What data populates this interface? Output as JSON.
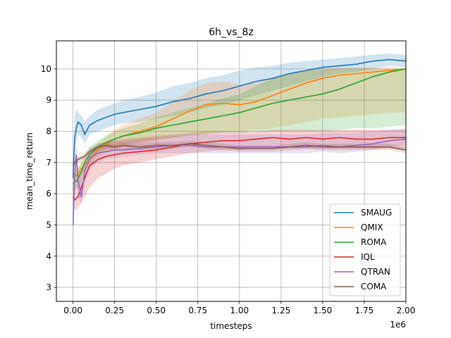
{
  "chart_data": {
    "type": "line",
    "title": "6h_vs_8z",
    "xlabel": "timesteps",
    "ylabel": "mean_time_return",
    "x_offset_label": "1e6",
    "xlim": [
      -0.1,
      2.0
    ],
    "ylim": [
      2.55,
      10.9
    ],
    "grid": true,
    "legend": "lower-right",
    "x_ticks": [
      0.0,
      0.25,
      0.5,
      0.75,
      1.0,
      1.25,
      1.5,
      1.75,
      2.0
    ],
    "x_tick_labels": [
      "0.00",
      "0.25",
      "0.50",
      "0.75",
      "1.00",
      "1.25",
      "1.50",
      "1.75",
      "2.00"
    ],
    "y_ticks": [
      3,
      4,
      5,
      6,
      7,
      8,
      9,
      10
    ],
    "y_tick_labels": [
      "3",
      "4",
      "5",
      "6",
      "7",
      "8",
      "9",
      "10"
    ],
    "x": [
      0.0,
      0.01,
      0.02,
      0.03,
      0.05,
      0.07,
      0.1,
      0.15,
      0.2,
      0.25,
      0.3,
      0.4,
      0.5,
      0.6,
      0.7,
      0.8,
      0.9,
      1.0,
      1.1,
      1.2,
      1.3,
      1.4,
      1.5,
      1.6,
      1.7,
      1.8,
      1.9,
      2.0
    ],
    "series": [
      {
        "name": "SMAUG",
        "color": "#1f77b4",
        "values": [
          6.5,
          7.8,
          8.1,
          8.3,
          8.2,
          7.9,
          8.2,
          8.35,
          8.45,
          8.55,
          8.6,
          8.7,
          8.8,
          8.95,
          9.05,
          9.2,
          9.3,
          9.45,
          9.6,
          9.7,
          9.85,
          9.95,
          10.05,
          10.1,
          10.15,
          10.25,
          10.3,
          10.25
        ],
        "band_low": [
          3.0,
          7.0,
          7.7,
          7.9,
          7.8,
          7.6,
          7.9,
          8.0,
          8.1,
          8.2,
          8.25,
          8.3,
          8.4,
          8.5,
          8.6,
          8.75,
          8.85,
          9.0,
          9.15,
          9.3,
          9.45,
          9.6,
          9.75,
          9.85,
          9.9,
          10.0,
          10.1,
          10.05
        ],
        "band_high": [
          6.8,
          8.5,
          8.7,
          8.6,
          8.5,
          8.3,
          8.5,
          8.7,
          8.8,
          8.9,
          9.0,
          9.1,
          9.25,
          9.45,
          9.55,
          9.7,
          9.8,
          9.95,
          10.05,
          10.1,
          10.2,
          10.25,
          10.3,
          10.35,
          10.4,
          10.45,
          10.5,
          10.45
        ]
      },
      {
        "name": "QMIX",
        "color": "#ff7f0e",
        "values": [
          6.5,
          6.55,
          6.6,
          6.65,
          6.8,
          6.95,
          7.1,
          7.4,
          7.6,
          7.75,
          7.85,
          8.0,
          8.15,
          8.4,
          8.65,
          8.85,
          8.9,
          8.85,
          8.95,
          9.15,
          9.35,
          9.55,
          9.7,
          9.8,
          9.85,
          9.9,
          9.95,
          10.0
        ],
        "band_low": [
          6.3,
          6.35,
          6.4,
          6.45,
          6.6,
          6.75,
          6.9,
          7.2,
          7.35,
          7.45,
          7.5,
          7.6,
          7.7,
          7.8,
          7.9,
          7.95,
          8.0,
          8.0,
          8.05,
          8.1,
          8.2,
          8.3,
          8.4,
          8.45,
          8.5,
          8.55,
          8.6,
          8.6
        ],
        "band_high": [
          6.7,
          6.75,
          6.8,
          6.85,
          7.0,
          7.15,
          7.3,
          7.6,
          7.85,
          8.05,
          8.2,
          8.4,
          8.6,
          8.95,
          9.3,
          9.55,
          9.6,
          9.5,
          9.55,
          9.7,
          9.85,
          9.95,
          10.0,
          10.05,
          10.05,
          10.05,
          10.05,
          10.05
        ]
      },
      {
        "name": "ROMA",
        "color": "#2ca02c",
        "values": [
          6.3,
          6.4,
          6.4,
          6.5,
          6.7,
          7.0,
          7.25,
          7.5,
          7.65,
          7.75,
          7.85,
          7.95,
          8.1,
          8.2,
          8.3,
          8.4,
          8.5,
          8.6,
          8.75,
          8.9,
          9.0,
          9.1,
          9.2,
          9.35,
          9.55,
          9.75,
          9.9,
          10.0
        ],
        "band_low": [
          6.0,
          6.1,
          6.15,
          6.2,
          6.4,
          6.75,
          7.0,
          7.3,
          7.45,
          7.5,
          7.6,
          7.65,
          7.75,
          7.8,
          7.85,
          7.9,
          7.95,
          7.95,
          8.0,
          8.0,
          8.0,
          8.0,
          8.0,
          8.05,
          8.1,
          8.1,
          8.15,
          8.2
        ],
        "band_high": [
          6.6,
          6.7,
          6.7,
          6.8,
          7.0,
          7.25,
          7.5,
          7.7,
          7.85,
          8.0,
          8.1,
          8.25,
          8.45,
          8.6,
          8.75,
          8.9,
          9.05,
          9.2,
          9.45,
          9.7,
          9.85,
          9.95,
          10.0,
          10.0,
          10.0,
          10.0,
          10.0,
          10.0
        ]
      },
      {
        "name": "IQL",
        "color": "#d62728",
        "values": [
          5.9,
          5.8,
          5.85,
          5.9,
          6.2,
          6.5,
          6.9,
          7.1,
          7.2,
          7.25,
          7.3,
          7.35,
          7.4,
          7.5,
          7.6,
          7.65,
          7.7,
          7.7,
          7.75,
          7.8,
          7.75,
          7.8,
          7.75,
          7.8,
          7.75,
          7.75,
          7.8,
          7.8
        ],
        "band_low": [
          5.6,
          5.5,
          5.5,
          5.55,
          5.7,
          5.9,
          6.2,
          6.5,
          6.65,
          6.8,
          6.9,
          7.0,
          7.1,
          7.2,
          7.3,
          7.35,
          7.4,
          7.4,
          7.45,
          7.45,
          7.45,
          7.45,
          7.45,
          7.45,
          7.45,
          7.45,
          7.45,
          7.45
        ],
        "band_high": [
          6.2,
          6.3,
          6.4,
          6.5,
          6.7,
          6.9,
          7.2,
          7.5,
          7.6,
          7.7,
          7.75,
          7.8,
          7.85,
          7.9,
          7.95,
          8.0,
          8.0,
          8.0,
          8.0,
          8.05,
          8.05,
          8.05,
          8.05,
          8.05,
          8.05,
          8.05,
          8.05,
          8.05
        ]
      },
      {
        "name": "QTRAN",
        "color": "#9467bd",
        "values": [
          5.0,
          6.6,
          7.25,
          6.4,
          5.9,
          6.7,
          7.15,
          7.3,
          7.35,
          7.4,
          7.4,
          7.45,
          7.5,
          7.55,
          7.55,
          7.5,
          7.5,
          7.5,
          7.5,
          7.5,
          7.5,
          7.5,
          7.55,
          7.5,
          7.55,
          7.6,
          7.7,
          7.75
        ],
        "band_low": [
          4.8,
          6.0,
          6.7,
          5.9,
          5.7,
          6.3,
          6.8,
          7.0,
          7.1,
          7.15,
          7.2,
          7.25,
          7.3,
          7.3,
          7.3,
          7.3,
          7.3,
          7.3,
          7.3,
          7.3,
          7.3,
          7.3,
          7.35,
          7.3,
          7.35,
          7.4,
          7.5,
          7.55
        ],
        "band_high": [
          5.3,
          7.1,
          7.6,
          6.9,
          6.4,
          7.0,
          7.45,
          7.6,
          7.65,
          7.7,
          7.7,
          7.75,
          7.8,
          7.85,
          7.9,
          7.9,
          7.9,
          7.9,
          7.9,
          7.9,
          7.9,
          7.9,
          7.95,
          7.95,
          7.95,
          8.0,
          8.05,
          8.1
        ]
      },
      {
        "name": "COMA",
        "color": "#8c564b",
        "values": [
          6.9,
          7.0,
          7.05,
          7.1,
          7.15,
          7.2,
          7.35,
          7.5,
          7.55,
          7.5,
          7.55,
          7.5,
          7.55,
          7.55,
          7.6,
          7.55,
          7.5,
          7.45,
          7.45,
          7.45,
          7.5,
          7.55,
          7.5,
          7.5,
          7.5,
          7.5,
          7.5,
          7.4
        ],
        "band_low": [
          6.8,
          6.9,
          6.95,
          7.0,
          7.05,
          7.1,
          7.25,
          7.4,
          7.45,
          7.4,
          7.45,
          7.4,
          7.45,
          7.45,
          7.5,
          7.45,
          7.4,
          7.35,
          7.35,
          7.35,
          7.4,
          7.45,
          7.4,
          7.4,
          7.4,
          7.4,
          7.4,
          7.3
        ],
        "band_high": [
          7.0,
          7.1,
          7.15,
          7.2,
          7.25,
          7.3,
          7.45,
          7.6,
          7.65,
          7.6,
          7.65,
          7.6,
          7.65,
          7.65,
          7.7,
          7.65,
          7.6,
          7.55,
          7.55,
          7.55,
          7.6,
          7.65,
          7.6,
          7.6,
          7.6,
          7.6,
          7.6,
          7.5
        ]
      }
    ]
  }
}
